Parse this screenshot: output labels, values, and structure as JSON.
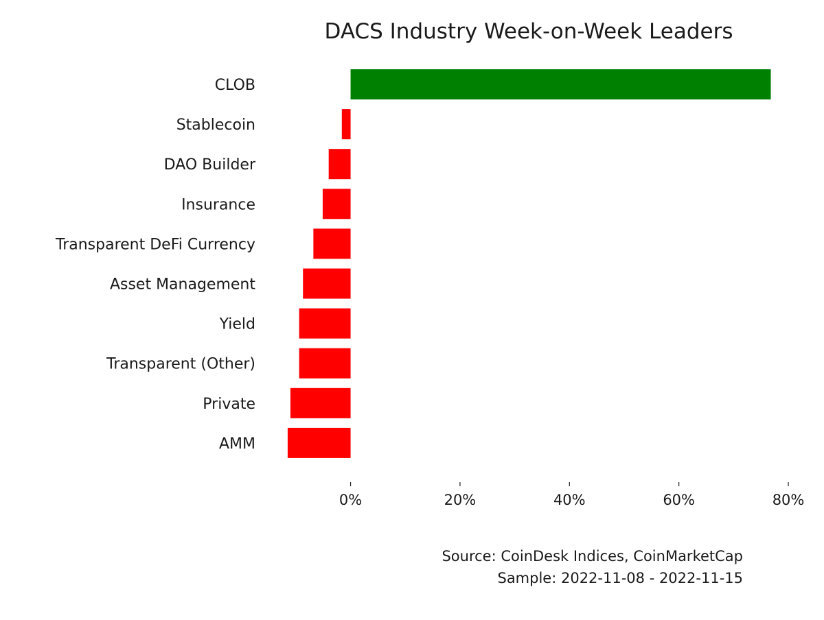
{
  "chart_data": {
    "type": "bar",
    "orientation": "horizontal",
    "title": "DACS Industry Week-on-Week Leaders",
    "xlabel": "",
    "ylabel": "",
    "categories": [
      "CLOB",
      "Stablecoin",
      "DAO Builder",
      "Insurance",
      "Transparent DeFi Currency",
      "Asset Management",
      "Yield",
      "Transparent (Other)",
      "Private",
      "AMM"
    ],
    "values": [
      76.8,
      -1.6,
      -4.0,
      -5.1,
      -6.8,
      -8.7,
      -9.4,
      -9.4,
      -11.0,
      -11.5
    ],
    "unit": "%",
    "xlim": [
      -14,
      81
    ],
    "xticks": [
      0,
      20,
      40,
      60,
      80
    ],
    "xtick_labels": [
      "0%",
      "20%",
      "40%",
      "60%",
      "80%"
    ],
    "grid": false,
    "colors": {
      "positive": "#008000",
      "negative": "#ff0000"
    },
    "annotations": [
      "Source: CoinDesk Indices, CoinMarketCap",
      "Sample: 2022-11-08 - 2022-11-15"
    ]
  }
}
